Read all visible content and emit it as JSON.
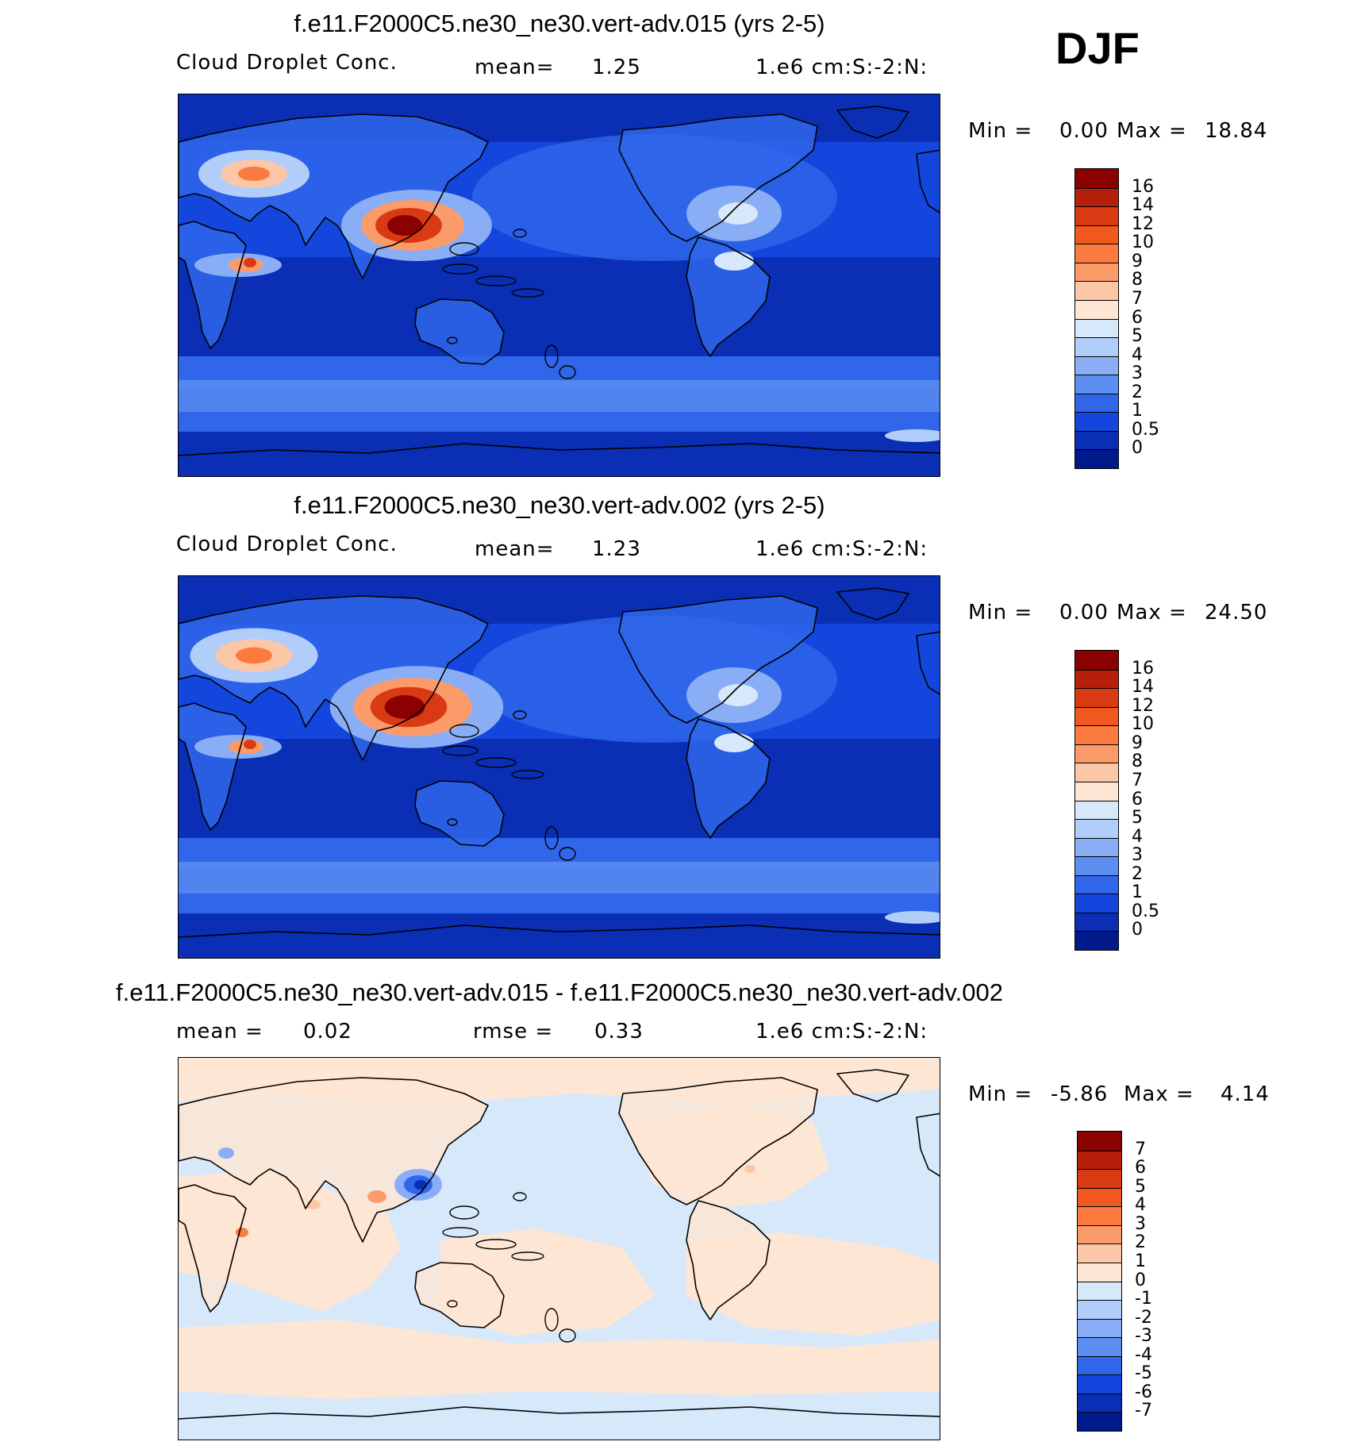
{
  "season": "DJF",
  "panels": [
    {
      "title": "f.e11.F2000C5.ne30_ne30.vert-adv.015 (yrs 2-5)",
      "left_label": "Cloud Droplet Conc.",
      "center_label": "mean=",
      "center_value": "1.25",
      "right_label": "1.e6 cm:S:-2:N:",
      "min_label": "Min =",
      "min_value": "0.00",
      "max_label": "Max =",
      "max_value": "18.84",
      "colorbar": {
        "levels": [
          "16",
          "14",
          "12",
          "10",
          "9",
          "8",
          "7",
          "6",
          "5",
          "4",
          "3",
          "2",
          "1",
          "0.5",
          "0"
        ],
        "colors": [
          "#8b0000",
          "#b51f0b",
          "#d93a13",
          "#f1581f",
          "#fb7a3f",
          "#fc9b6a",
          "#fbc7a6",
          "#fde6d4",
          "#d7e8fb",
          "#b1cdfa",
          "#8aaef5",
          "#5b8ef0",
          "#2f66ea",
          "#1446dd",
          "#0a2fb5",
          "#001a8c"
        ]
      },
      "map_type": "absolute"
    },
    {
      "title": "f.e11.F2000C5.ne30_ne30.vert-adv.002 (yrs 2-5)",
      "left_label": "Cloud Droplet Conc.",
      "center_label": "mean=",
      "center_value": "1.23",
      "right_label": "1.e6 cm:S:-2:N:",
      "min_label": "Min =",
      "min_value": "0.00",
      "max_label": "Max =",
      "max_value": "24.50",
      "colorbar": {
        "levels": [
          "16",
          "14",
          "12",
          "10",
          "9",
          "8",
          "7",
          "6",
          "5",
          "4",
          "3",
          "2",
          "1",
          "0.5",
          "0"
        ],
        "colors": [
          "#8b0000",
          "#b51f0b",
          "#d93a13",
          "#f1581f",
          "#fb7a3f",
          "#fc9b6a",
          "#fbc7a6",
          "#fde6d4",
          "#d7e8fb",
          "#b1cdfa",
          "#8aaef5",
          "#5b8ef0",
          "#2f66ea",
          "#1446dd",
          "#0a2fb5",
          "#001a8c"
        ]
      },
      "map_type": "absolute"
    },
    {
      "title": "f.e11.F2000C5.ne30_ne30.vert-adv.015 - f.e11.F2000C5.ne30_ne30.vert-adv.002",
      "left_label": "mean =",
      "left_value": "0.02",
      "center_label": "rmse =",
      "center_value": "0.33",
      "right_label": "1.e6 cm:S:-2:N:",
      "min_label": "Min =",
      "min_value": "-5.86",
      "max_label": "Max =",
      "max_value": "4.14",
      "colorbar": {
        "levels": [
          "7",
          "6",
          "5",
          "4",
          "3",
          "2",
          "1",
          "0",
          "-1",
          "-2",
          "-3",
          "-4",
          "-5",
          "-6",
          "-7"
        ],
        "colors": [
          "#8b0000",
          "#b51f0b",
          "#d93a13",
          "#f1581f",
          "#fb7a3f",
          "#fc9b6a",
          "#fbc7a6",
          "#fde6d4",
          "#d7e8fb",
          "#b1cdfa",
          "#8aaef5",
          "#5b8ef0",
          "#2f66ea",
          "#1446dd",
          "#0a2fb5",
          "#001a8c"
        ]
      },
      "map_type": "difference"
    }
  ]
}
